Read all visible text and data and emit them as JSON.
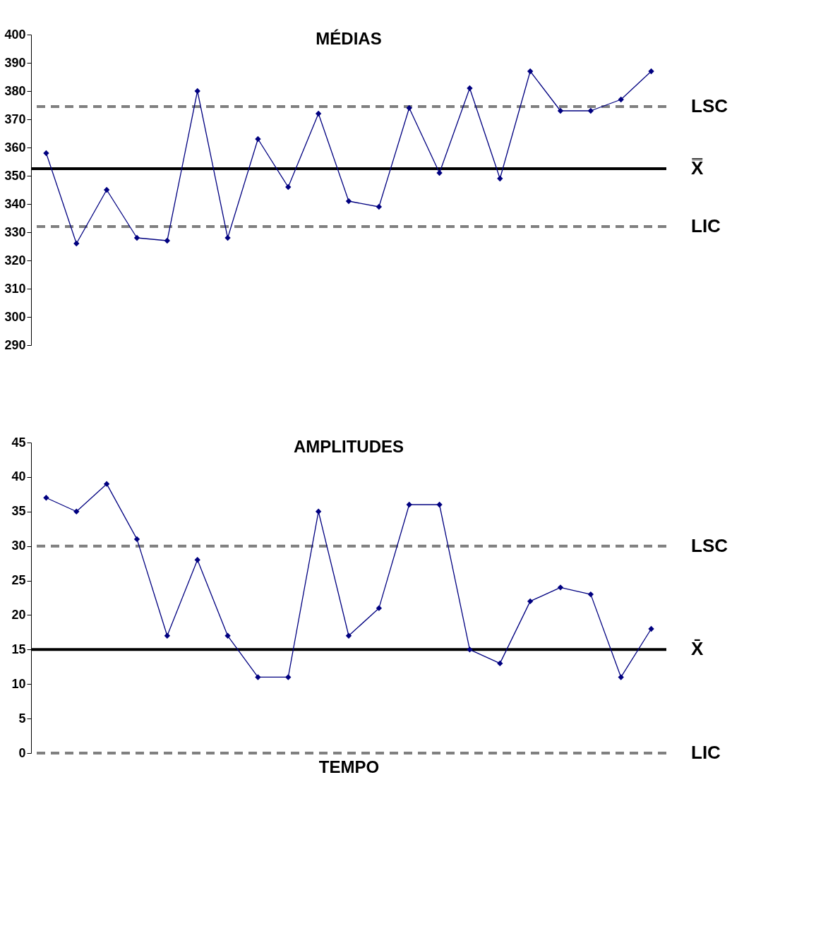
{
  "chart_data": [
    {
      "type": "line",
      "title": "MÉDIAS",
      "categories": [
        null,
        null,
        null,
        null,
        null,
        null,
        null,
        null,
        null,
        null,
        null,
        null,
        null,
        null,
        null,
        null,
        null,
        null,
        null,
        null,
        null
      ],
      "series": [
        {
          "color": "#000080",
          "values": [
            358,
            326,
            345,
            328,
            327,
            380,
            328,
            363,
            346,
            372,
            341,
            339,
            374,
            351,
            381,
            349,
            387,
            373,
            373,
            377,
            387
          ]
        }
      ],
      "ylim": [
        290,
        400
      ],
      "yticks": [
        290,
        300,
        310,
        320,
        330,
        340,
        350,
        360,
        370,
        380,
        390,
        400
      ],
      "tick_labels": "y",
      "grid": false,
      "legend": false,
      "marker": "diamond",
      "line_style": "solid",
      "ref_lines": [
        {
          "axis": "y",
          "value": 374.5,
          "label": "LSC",
          "color": "#808080",
          "line_style": "dashed"
        },
        {
          "axis": "y",
          "value": 352.5,
          "label": "X̿",
          "color": "#000000",
          "line_style": "solid"
        },
        {
          "axis": "y",
          "value": 332,
          "label": "LIC",
          "color": "#808080",
          "line_style": "dashed"
        }
      ]
    },
    {
      "type": "line",
      "title": "AMPLITUDES",
      "xlabel": "TEMPO",
      "categories": [
        null,
        null,
        null,
        null,
        null,
        null,
        null,
        null,
        null,
        null,
        null,
        null,
        null,
        null,
        null,
        null,
        null,
        null,
        null,
        null,
        null
      ],
      "series": [
        {
          "color": "#000080",
          "values": [
            37,
            35,
            39,
            31,
            17,
            28,
            17,
            11,
            11,
            35,
            17,
            21,
            36,
            36,
            15,
            13,
            22,
            24,
            23,
            11,
            18
          ]
        }
      ],
      "ylim": [
        0,
        45
      ],
      "yticks": [
        0,
        5,
        10,
        15,
        20,
        25,
        30,
        35,
        40,
        45
      ],
      "tick_labels": "y",
      "grid": false,
      "legend": false,
      "marker": "diamond",
      "line_style": "solid",
      "ref_lines": [
        {
          "axis": "y",
          "value": 30,
          "label": "LSC",
          "color": "#808080",
          "line_style": "dashed"
        },
        {
          "axis": "y",
          "value": 15,
          "label": "X̄",
          "color": "#000000",
          "line_style": "solid"
        },
        {
          "axis": "y",
          "value": 0,
          "label": "LIC",
          "color": "#808080",
          "line_style": "dashed"
        }
      ]
    }
  ]
}
